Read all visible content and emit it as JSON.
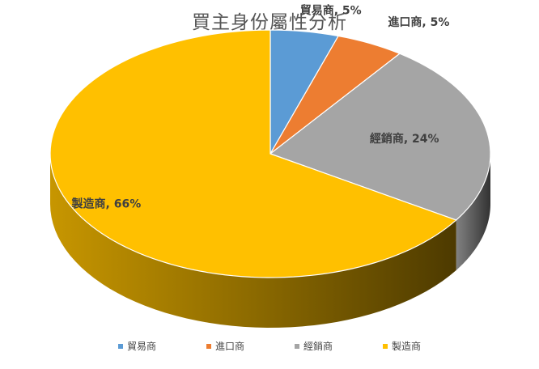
{
  "chart_data": {
    "type": "pie",
    "title": "買主身份屬性分析",
    "slices": [
      {
        "name": "貿易商",
        "value": 5,
        "label": "貿易商, 5%",
        "color": "#5B9BD5"
      },
      {
        "name": "進口商",
        "value": 5,
        "label": "進口商, 5%",
        "color": "#ED7D31"
      },
      {
        "name": "經銷商",
        "value": 24,
        "label": "經銷商, 24%",
        "color": "#A5A5A5"
      },
      {
        "name": "製造商",
        "value": 66,
        "label": "製造商, 66%",
        "color": "#FFC000"
      }
    ],
    "legend_position": "bottom",
    "style": "3d-pie"
  }
}
